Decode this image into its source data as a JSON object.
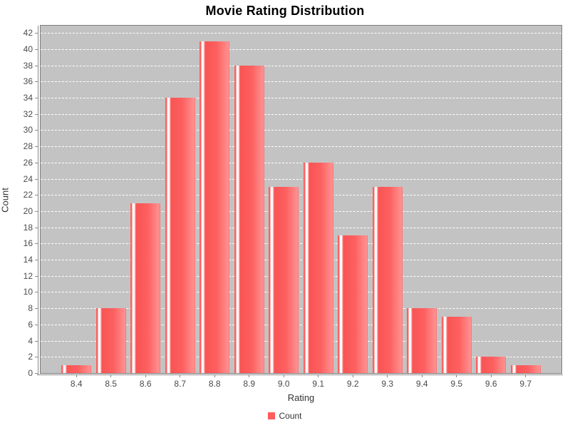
{
  "chart_data": {
    "type": "bar",
    "title": "Movie Rating Distribution",
    "xlabel": "Rating",
    "ylabel": "Count",
    "categories": [
      "8.4",
      "8.5",
      "8.6",
      "8.7",
      "8.8",
      "8.9",
      "9.0",
      "9.1",
      "9.2",
      "9.3",
      "9.4",
      "9.5",
      "9.6",
      "9.7"
    ],
    "values": [
      1,
      8,
      21,
      34,
      41,
      38,
      23,
      26,
      17,
      23,
      8,
      7,
      2,
      1
    ],
    "series_name": "Count",
    "ylim": [
      0,
      42.9
    ],
    "y_ticks": [
      0,
      2,
      4,
      6,
      8,
      10,
      12,
      14,
      16,
      18,
      20,
      22,
      24,
      26,
      28,
      30,
      32,
      34,
      36,
      38,
      40,
      42
    ],
    "grid": true,
    "gridline_style": "dashed",
    "legend": {
      "label": "Count",
      "position": "bottom"
    },
    "colors": {
      "plot_bg": "#c3c3c3",
      "gridline": "#ffffff",
      "bar": "#fd6060",
      "bar_dark": "#f95454",
      "bar_light": "#ff9292",
      "bar_highlight": "#ffffff",
      "axis": "#8a8a8a",
      "tick_label": "#4a4a4a",
      "title_color": "#000000",
      "legend_swatch": "#ff5c5c"
    }
  }
}
